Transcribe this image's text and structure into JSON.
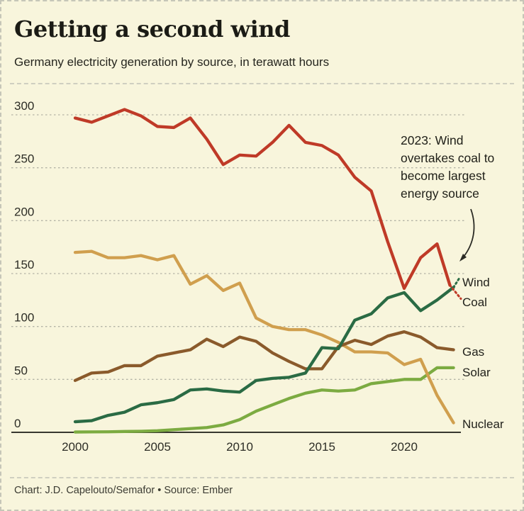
{
  "header": {
    "title": "Getting a second wind",
    "subtitle": "Germany electricity generation by source, in terawatt hours"
  },
  "annotation": {
    "text": "2023: Wind\novertakes coal to\nbecome largest\nenergy source"
  },
  "footer": {
    "credit": "Chart: J.D. Capelouto/Semafor • Source: Ember"
  },
  "colors": {
    "background": "#f8f5dc",
    "gridline": "#b4b4a6",
    "axis": "#38382f",
    "tick_text": "#2d2d26",
    "label_text": "#22221c",
    "coal": "#bf3a27",
    "wind": "#2a6b44",
    "gas": "#8a5a2b",
    "solar": "#7cab41",
    "nuclear": "#d09f4e"
  },
  "chart_data": {
    "type": "line",
    "title": "Getting a second wind",
    "subtitle": "Germany electricity generation by source, in terawatt hours",
    "unit": "terawatt hours",
    "grid": "horizontal-dashed",
    "legend_position": "right-of-line-ends",
    "ylim": [
      0,
      310
    ],
    "yticks": [
      0,
      50,
      100,
      150,
      200,
      250,
      300
    ],
    "xticks": [
      2000,
      2005,
      2010,
      2015,
      2020
    ],
    "x": [
      2000,
      2001,
      2002,
      2003,
      2004,
      2005,
      2006,
      2007,
      2008,
      2009,
      2010,
      2011,
      2012,
      2013,
      2014,
      2015,
      2016,
      2017,
      2018,
      2019,
      2020,
      2021,
      2022,
      2023
    ],
    "note": "final 2022-to-2023 segment drawn dotted for Wind and Coal",
    "series": [
      {
        "name": "Wind",
        "color": "#2a6b44",
        "z": 4,
        "dotted_tail": true,
        "values": [
          10,
          11,
          16,
          19,
          26,
          28,
          31,
          40,
          41,
          39,
          38,
          49,
          51,
          52,
          56,
          80,
          79,
          106,
          112,
          127,
          132,
          115,
          125,
          137
        ]
      },
      {
        "name": "Coal",
        "color": "#bf3a27",
        "z": 5,
        "dotted_tail": true,
        "values": [
          297,
          293,
          299,
          305,
          299,
          289,
          288,
          297,
          277,
          253,
          262,
          261,
          274,
          290,
          274,
          271,
          262,
          241,
          228,
          180,
          136,
          165,
          178,
          128
        ]
      },
      {
        "name": "Gas",
        "color": "#8a5a2b",
        "z": 3,
        "dotted_tail": false,
        "values": [
          49,
          56,
          57,
          63,
          63,
          72,
          75,
          78,
          88,
          81,
          90,
          86,
          75,
          67,
          60,
          60,
          81,
          87,
          83,
          91,
          95,
          90,
          80,
          78
        ]
      },
      {
        "name": "Solar",
        "color": "#7cab41",
        "z": 1,
        "dotted_tail": false,
        "values": [
          0.3,
          0.4,
          0.5,
          0.8,
          1,
          1.5,
          2.5,
          3.5,
          4.5,
          7,
          12,
          20,
          26,
          32,
          37,
          40,
          39,
          40,
          46,
          48,
          50,
          50,
          61,
          61
        ]
      },
      {
        "name": "Nuclear",
        "color": "#d09f4e",
        "z": 2,
        "dotted_tail": false,
        "values": [
          170,
          171,
          165,
          165,
          167,
          163,
          167,
          140,
          148,
          134,
          141,
          108,
          100,
          97,
          97,
          92,
          85,
          76,
          76,
          75,
          64,
          69,
          35,
          9
        ]
      }
    ]
  }
}
